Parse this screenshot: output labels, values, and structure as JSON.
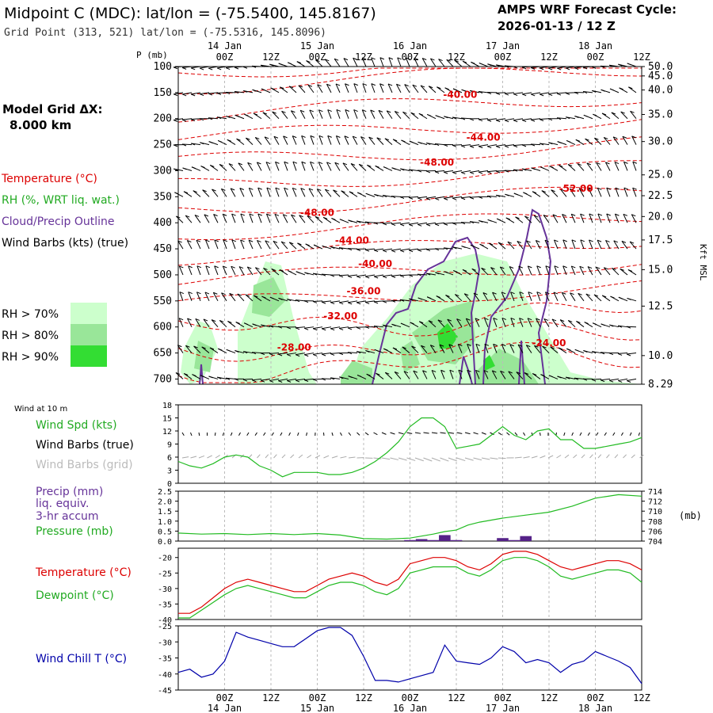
{
  "header": {
    "title": "Midpoint C (MDC):  lat/lon = (-75.5400, 145.8167)",
    "subtitle": "Grid Point (313, 521) lat/lon = (-75.5316, 145.8096)",
    "cycle_label": "AMPS WRF Forecast Cycle:",
    "cycle_value": "2026-01-13 / 12  Z"
  },
  "model_grid": {
    "label": "Model Grid ΔX:",
    "value": "8.000 km"
  },
  "time_axis": {
    "start_hours": 0,
    "end_hours": 120,
    "hour_labels": [
      "00Z",
      "12Z",
      "00Z",
      "12Z",
      "00Z",
      "12Z",
      "00Z",
      "12Z",
      "00Z",
      "12Z"
    ],
    "hour_positions": [
      12,
      24,
      36,
      48,
      60,
      72,
      84,
      96,
      108,
      120
    ],
    "day_labels": [
      "14 Jan",
      "15 Jan",
      "16 Jan",
      "17 Jan",
      "18 Jan"
    ],
    "day_positions": [
      12,
      36,
      60,
      84,
      108
    ]
  },
  "cross_section": {
    "p_label": "P (mb)",
    "pressure_levels": [
      100,
      150,
      200,
      250,
      300,
      350,
      400,
      450,
      500,
      550,
      600,
      650,
      700
    ],
    "height_labels": [
      "50.0",
      "45.0",
      "40.0",
      "35.0",
      "30.0",
      "25.0",
      "22.5",
      "20.0",
      "17.5",
      "15.0",
      "12.5",
      "10.0",
      "8.29"
    ],
    "height_pressures": [
      100,
      118,
      145,
      192,
      244,
      308,
      348,
      388,
      433,
      490,
      560,
      655,
      710
    ],
    "height_axis_label": "Kft MSL",
    "legend": {
      "temperature": "Temperature (°C)",
      "rh": "RH (%, WRT liq. wat.)",
      "cloud": "Cloud/Precip Outline",
      "wind": "Wind Barbs (kts) (true)"
    },
    "rh_legend": [
      {
        "label": "RH > 70%",
        "color": "#ccffcc"
      },
      {
        "label": "RH > 80%",
        "color": "#99e699"
      },
      {
        "label": "RH > 90%",
        "color": "#33dd33"
      }
    ],
    "temperature_labels": [
      {
        "text": "-24.00",
        "hours": 96,
        "p": 637
      },
      {
        "text": "-28.00",
        "hours": 30,
        "p": 645
      },
      {
        "text": "-32.00",
        "hours": 42,
        "p": 585
      },
      {
        "text": "-36.00",
        "hours": 48,
        "p": 537
      },
      {
        "text": "-40.00",
        "hours": 51,
        "p": 485
      },
      {
        "text": "-44.00",
        "hours": 45,
        "p": 440
      },
      {
        "text": "-48.00",
        "hours": 36,
        "p": 387
      },
      {
        "text": "-48.00",
        "hours": 67,
        "p": 290
      },
      {
        "text": "-52.00",
        "hours": 103,
        "p": 340
      },
      {
        "text": "-44.00",
        "hours": 79,
        "p": 242
      },
      {
        "text": "-40.00",
        "hours": 73,
        "p": 160
      }
    ]
  },
  "panels": {
    "wind10": {
      "header": "Wind at 10 m",
      "labels": [
        "Wind Spd (kts)",
        "Wind Barbs (true)",
        "Wind Barbs (grid)"
      ],
      "yticks": [
        0,
        3,
        6,
        9,
        12,
        15,
        18
      ],
      "series_name": "Wind Spd (kts)",
      "hours": [
        0,
        3,
        6,
        9,
        12,
        15,
        18,
        21,
        24,
        27,
        30,
        33,
        36,
        39,
        42,
        45,
        48,
        51,
        54,
        57,
        60,
        63,
        66,
        69,
        72,
        75,
        78,
        81,
        84,
        87,
        90,
        93,
        96,
        99,
        102,
        105,
        108,
        111,
        114,
        117,
        120
      ],
      "speed": [
        5,
        4,
        3.5,
        4.5,
        6,
        6.5,
        6,
        4,
        3,
        1.5,
        2.5,
        2.5,
        2.5,
        2,
        2,
        2.5,
        3.5,
        5,
        7,
        9.5,
        13,
        15,
        15,
        13,
        8,
        8.5,
        9,
        11,
        13,
        11,
        10,
        12,
        12.5,
        10,
        10,
        8,
        8,
        8.5,
        9,
        9.5,
        10.5
      ]
    },
    "precip": {
      "labels": [
        "Precip (mm)",
        "liq. equiv.",
        "3-hr accum",
        "Pressure (mb)"
      ],
      "yticks": [
        "0.0",
        "0.5",
        "1.0",
        "1.5",
        "2.0",
        "2.5"
      ],
      "pressure_ticks": [
        "704",
        "706",
        "708",
        "710",
        "712",
        "714"
      ],
      "pressure_unit": "(mb)",
      "precip_bars": [
        {
          "hours": 60,
          "mm": 0.05
        },
        {
          "hours": 63,
          "mm": 0.1
        },
        {
          "hours": 66,
          "mm": 0.05
        },
        {
          "hours": 69,
          "mm": 0.3
        },
        {
          "hours": 72,
          "mm": 0.05
        },
        {
          "hours": 84,
          "mm": 0.15
        },
        {
          "hours": 87,
          "mm": 0.05
        },
        {
          "hours": 90,
          "mm": 0.25
        }
      ],
      "pressure_hours": [
        0,
        6,
        12,
        18,
        24,
        30,
        36,
        42,
        48,
        54,
        60,
        63,
        66,
        69,
        72,
        75,
        78,
        84,
        90,
        96,
        102,
        108,
        114,
        120
      ],
      "pressure_mb": [
        705.6,
        705.4,
        705.5,
        705.3,
        705.5,
        705.3,
        705.5,
        705.2,
        704.5,
        704.4,
        704.6,
        705.0,
        705.4,
        705.9,
        706.2,
        707.2,
        707.8,
        708.6,
        709.2,
        709.8,
        711.0,
        712.6,
        713.3,
        713.0
      ]
    },
    "temp": {
      "labels": [
        "Temperature (°C)",
        "Dewpoint (°C)"
      ],
      "yticks": [
        -40,
        -35,
        -30,
        -25,
        -20
      ],
      "hours": [
        0,
        3,
        6,
        9,
        12,
        15,
        18,
        21,
        24,
        27,
        30,
        33,
        36,
        39,
        42,
        45,
        48,
        51,
        54,
        57,
        60,
        63,
        66,
        69,
        72,
        75,
        78,
        81,
        84,
        87,
        90,
        93,
        96,
        99,
        102,
        105,
        108,
        111,
        114,
        117,
        120
      ],
      "temperature": [
        -38,
        -38,
        -36,
        -33,
        -30,
        -28,
        -27,
        -28,
        -29,
        -30,
        -31,
        -31,
        -29,
        -27,
        -26,
        -25,
        -26,
        -28,
        -29,
        -27,
        -22,
        -21,
        -20,
        -20,
        -21,
        -23,
        -24,
        -22,
        -19,
        -18,
        -18,
        -19,
        -21,
        -23,
        -24,
        -23,
        -22,
        -21,
        -21,
        -22,
        -24
      ],
      "dewpoint": [
        -39.5,
        -39.5,
        -37,
        -34.5,
        -32,
        -30,
        -29,
        -30,
        -31,
        -32,
        -33,
        -33,
        -31,
        -29,
        -28,
        -28,
        -29,
        -31,
        -32,
        -30,
        -25,
        -24,
        -23,
        -23,
        -23,
        -25,
        -26,
        -24,
        -21,
        -20,
        -20,
        -21,
        -23,
        -26,
        -27,
        -26,
        -25,
        -24,
        -24,
        -25,
        -28
      ]
    },
    "chill": {
      "labels": [
        "Wind Chill T (°C)"
      ],
      "yticks": [
        -45,
        -40,
        -35,
        -30,
        -25
      ],
      "hours": [
        0,
        3,
        6,
        9,
        12,
        15,
        18,
        21,
        24,
        27,
        30,
        33,
        36,
        39,
        42,
        45,
        48,
        51,
        54,
        57,
        60,
        63,
        66,
        69,
        72,
        75,
        78,
        81,
        84,
        87,
        90,
        93,
        96,
        99,
        102,
        105,
        108,
        111,
        114,
        117,
        120
      ],
      "windchill": [
        -39.5,
        -38.5,
        -41,
        -40,
        -36,
        -27,
        -28.5,
        -29.5,
        -30.5,
        -31.5,
        -31.5,
        -29,
        -26.5,
        -25.5,
        -25.5,
        -28,
        -34.5,
        -42,
        -42,
        -42.5,
        -41.5,
        -40.5,
        -39.5,
        -31,
        -36,
        -36.5,
        -37,
        -35,
        -31.5,
        -33,
        -36.5,
        -35.5,
        -36.5,
        -39.5,
        -37,
        -36,
        -33,
        -34.5,
        -36,
        -38,
        -43
      ]
    }
  },
  "colors": {
    "temperature": "#dd0000",
    "dewpoint": "#22bb22",
    "cloud": "#663399",
    "windchill": "#0000aa",
    "precip": "#552288",
    "wind": "#000000",
    "wind_grid": "#aaaaaa",
    "rh70": "#ccffcc",
    "rh80": "#99e699",
    "rh90": "#33dd33"
  }
}
